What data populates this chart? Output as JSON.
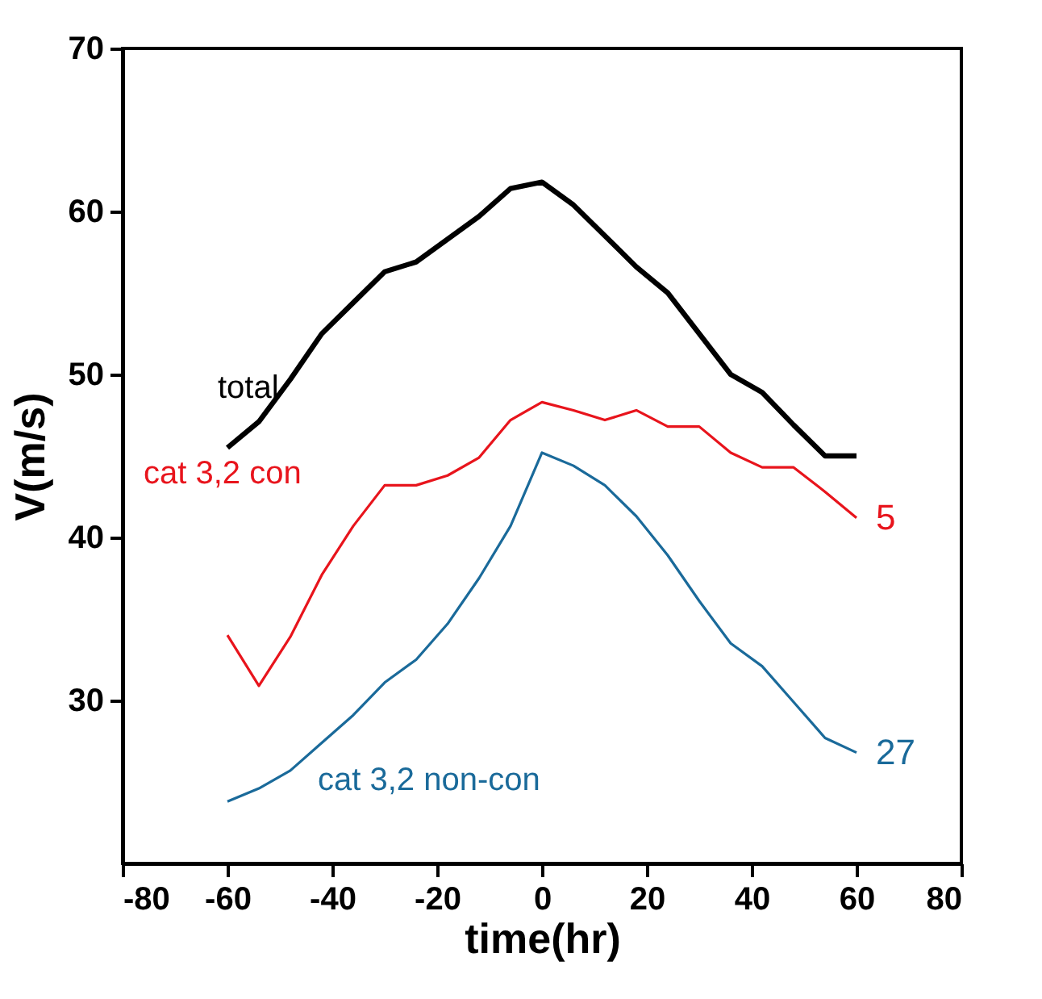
{
  "chart_data": {
    "type": "line",
    "xlabel": "time(hr)",
    "ylabel": "V(m/s)",
    "x": [
      -60,
      -54,
      -48,
      -42,
      -36,
      -30,
      -24,
      -18,
      -12,
      -6,
      0,
      6,
      12,
      18,
      24,
      30,
      36,
      42,
      48,
      54,
      60
    ],
    "series": [
      {
        "name": "total",
        "color": "#000000",
        "values": [
          45.5,
          47.1,
          49.7,
          52.5,
          54.4,
          56.3,
          56.9,
          58.3,
          59.7,
          61.4,
          61.8,
          60.4,
          58.5,
          56.6,
          55.0,
          52.5,
          50.0,
          48.9,
          46.9,
          45.0,
          45.0
        ]
      },
      {
        "name": "cat 3,2 con",
        "color": "#e8141c",
        "values": [
          34.0,
          30.9,
          33.9,
          37.7,
          40.7,
          43.2,
          43.2,
          43.8,
          44.9,
          47.2,
          48.3,
          47.8,
          47.2,
          47.8,
          46.8,
          46.8,
          45.2,
          44.3,
          44.3,
          42.8,
          41.2
        ]
      },
      {
        "name": "cat 3,2 non-con",
        "color": "#1a6a9a",
        "values": [
          23.8,
          24.6,
          25.7,
          27.4,
          29.1,
          31.1,
          32.5,
          34.7,
          37.5,
          40.7,
          45.2,
          44.4,
          43.2,
          41.3,
          38.9,
          36.1,
          33.5,
          32.1,
          29.9,
          27.7,
          26.8
        ]
      }
    ],
    "annotations": [
      {
        "text": "5",
        "x": 60,
        "y": 41.2
      },
      {
        "text": "27",
        "x": 60,
        "y": 26.8
      }
    ],
    "xlim": [
      -80,
      80
    ],
    "xticks": [
      -80,
      -60,
      -40,
      -20,
      0,
      20,
      40,
      60,
      80
    ],
    "ylim": [
      20,
      70
    ],
    "yticks": [
      30,
      40,
      50,
      60,
      70
    ],
    "grid": false,
    "marker": "none",
    "line_style": "solid"
  }
}
